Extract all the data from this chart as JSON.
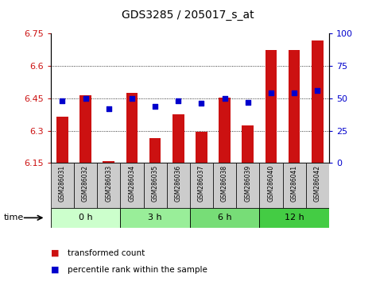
{
  "title": "GDS3285 / 205017_s_at",
  "samples": [
    "GSM286031",
    "GSM286032",
    "GSM286033",
    "GSM286034",
    "GSM286035",
    "GSM286036",
    "GSM286037",
    "GSM286038",
    "GSM286039",
    "GSM286040",
    "GSM286041",
    "GSM286042"
  ],
  "bar_values": [
    6.365,
    6.465,
    6.16,
    6.475,
    6.265,
    6.375,
    6.295,
    6.455,
    6.325,
    6.675,
    6.675,
    6.72
  ],
  "blue_values": [
    48,
    50,
    42,
    50,
    44,
    48,
    46,
    50,
    47,
    54,
    54,
    56
  ],
  "bar_bottom": 6.15,
  "ylim_left": [
    6.15,
    6.75
  ],
  "ylim_right": [
    0,
    100
  ],
  "yticks_left": [
    6.15,
    6.3,
    6.45,
    6.6,
    6.75
  ],
  "yticks_right": [
    0,
    25,
    50,
    75,
    100
  ],
  "ytick_labels_left": [
    "6.15",
    "6.3",
    "6.45",
    "6.6",
    "6.75"
  ],
  "ytick_labels_right": [
    "0",
    "25",
    "50",
    "75",
    "100"
  ],
  "groups": [
    {
      "label": "0 h",
      "start": 0,
      "end": 3,
      "color": "#ccffcc"
    },
    {
      "label": "3 h",
      "start": 3,
      "end": 6,
      "color": "#99ee99"
    },
    {
      "label": "6 h",
      "start": 6,
      "end": 9,
      "color": "#77dd77"
    },
    {
      "label": "12 h",
      "start": 9,
      "end": 12,
      "color": "#44cc44"
    }
  ],
  "time_label": "time",
  "bar_color": "#cc1111",
  "dot_color": "#0000cc",
  "bar_width": 0.5,
  "grid_color": "#000000",
  "bg_color": "#ffffff",
  "sample_box_color": "#cccccc",
  "legend_items": [
    "transformed count",
    "percentile rank within the sample"
  ],
  "legend_colors": [
    "#cc1111",
    "#0000cc"
  ],
  "left_label_color": "#cc1111",
  "right_label_color": "#0000cc",
  "grid_yticks": [
    6.3,
    6.45,
    6.6
  ]
}
